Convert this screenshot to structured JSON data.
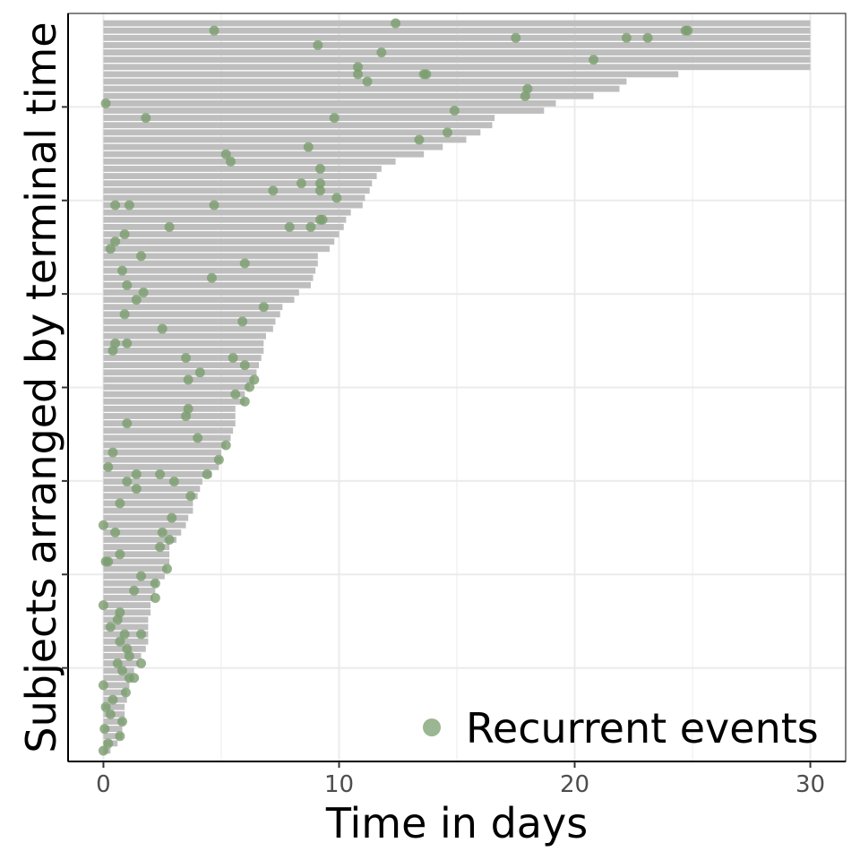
{
  "chart_data": {
    "type": "bar",
    "orientation": "horizontal",
    "xlabel": "Time in days",
    "ylabel": "Subjects arranged by terminal time",
    "xlim": [
      -1.5,
      31.5
    ],
    "ylim": [
      0,
      100
    ],
    "x_ticks": [
      0,
      10,
      20,
      30
    ],
    "y_ticks_at": [
      12.5,
      25,
      37.5,
      50,
      62.5,
      75,
      87.5
    ],
    "y_tick_labels_shown": false,
    "grid": true,
    "legend_position": "bottom-right",
    "colors": {
      "bar": "#bebebe",
      "point": "#7a9e6e",
      "grid": "#ebebeb",
      "panel_border": "#333333"
    },
    "bar_series_name": "",
    "point_series_name": "Recurrent events",
    "subjects": [
      {
        "terminal": 0.3,
        "events": [
          0.0
        ]
      },
      {
        "terminal": 0.6,
        "events": [
          0.2
        ]
      },
      {
        "terminal": 0.8,
        "events": [
          0.7
        ]
      },
      {
        "terminal": 0.8,
        "events": [
          0.05
        ]
      },
      {
        "terminal": 0.9,
        "events": [
          0.8
        ]
      },
      {
        "terminal": 0.9,
        "events": [
          0.3
        ]
      },
      {
        "terminal": 0.9,
        "events": [
          0.1
        ]
      },
      {
        "terminal": 1.0,
        "events": [
          0.4
        ]
      },
      {
        "terminal": 1.0,
        "events": [
          0.95
        ]
      },
      {
        "terminal": 1.1,
        "events": [
          0.0
        ]
      },
      {
        "terminal": 1.2,
        "events": [
          1.1,
          1.3
        ]
      },
      {
        "terminal": 1.3,
        "events": [
          0.8
        ]
      },
      {
        "terminal": 1.5,
        "events": [
          0.6,
          1.6
        ]
      },
      {
        "terminal": 1.6,
        "events": [
          1.1
        ]
      },
      {
        "terminal": 1.8,
        "events": [
          1.0
        ]
      },
      {
        "terminal": 1.9,
        "events": [
          0.7
        ]
      },
      {
        "terminal": 1.9,
        "events": [
          0.9,
          1.6
        ]
      },
      {
        "terminal": 1.9,
        "events": [
          0.3
        ]
      },
      {
        "terminal": 1.9,
        "events": [
          0.6
        ]
      },
      {
        "terminal": 2.0,
        "events": [
          0.7
        ]
      },
      {
        "terminal": 2.0,
        "events": [
          0.0
        ]
      },
      {
        "terminal": 2.1,
        "events": [
          2.2
        ]
      },
      {
        "terminal": 2.2,
        "events": [
          1.3
        ]
      },
      {
        "terminal": 2.3,
        "events": [
          2.2
        ]
      },
      {
        "terminal": 2.6,
        "events": [
          1.6
        ]
      },
      {
        "terminal": 2.7,
        "events": [
          2.7
        ]
      },
      {
        "terminal": 2.8,
        "events": [
          0.1,
          0.2
        ]
      },
      {
        "terminal": 2.8,
        "events": [
          0.7
        ]
      },
      {
        "terminal": 2.8,
        "events": [
          2.4
        ]
      },
      {
        "terminal": 3.1,
        "events": [
          2.8
        ]
      },
      {
        "terminal": 3.3,
        "events": [
          0.5,
          2.5
        ]
      },
      {
        "terminal": 3.5,
        "events": [
          0.0
        ]
      },
      {
        "terminal": 3.6,
        "events": [
          2.9
        ]
      },
      {
        "terminal": 3.8,
        "events": []
      },
      {
        "terminal": 3.8,
        "events": [
          0.7
        ]
      },
      {
        "terminal": 4.0,
        "events": [
          3.7
        ]
      },
      {
        "terminal": 4.1,
        "events": [
          1.4
        ]
      },
      {
        "terminal": 4.2,
        "events": [
          1.0,
          3.0
        ]
      },
      {
        "terminal": 4.6,
        "events": [
          1.4,
          2.4,
          4.4
        ]
      },
      {
        "terminal": 4.9,
        "events": [
          0.2
        ]
      },
      {
        "terminal": 5.0,
        "events": [
          4.9
        ]
      },
      {
        "terminal": 5.0,
        "events": [
          0.4
        ]
      },
      {
        "terminal": 5.2,
        "events": [
          5.2
        ]
      },
      {
        "terminal": 5.4,
        "events": [
          4.0
        ]
      },
      {
        "terminal": 5.5,
        "events": []
      },
      {
        "terminal": 5.6,
        "events": [
          1.0
        ]
      },
      {
        "terminal": 5.6,
        "events": [
          3.5
        ]
      },
      {
        "terminal": 5.6,
        "events": [
          3.6
        ]
      },
      {
        "terminal": 6.0,
        "events": [
          6.0
        ]
      },
      {
        "terminal": 6.0,
        "events": [
          5.6
        ]
      },
      {
        "terminal": 6.2,
        "events": [
          6.2
        ]
      },
      {
        "terminal": 6.4,
        "events": [
          6.4,
          3.6
        ]
      },
      {
        "terminal": 6.5,
        "events": [
          4.1
        ]
      },
      {
        "terminal": 6.6,
        "events": [
          6.0
        ]
      },
      {
        "terminal": 6.7,
        "events": [
          3.5,
          5.5
        ]
      },
      {
        "terminal": 6.8,
        "events": [
          0.4
        ]
      },
      {
        "terminal": 6.8,
        "events": [
          0.5,
          1.0
        ]
      },
      {
        "terminal": 6.9,
        "events": []
      },
      {
        "terminal": 7.2,
        "events": [
          2.5
        ]
      },
      {
        "terminal": 7.3,
        "events": [
          5.9
        ]
      },
      {
        "terminal": 7.5,
        "events": [
          0.9
        ]
      },
      {
        "terminal": 7.6,
        "events": [
          6.8
        ]
      },
      {
        "terminal": 8.1,
        "events": [
          1.4
        ]
      },
      {
        "terminal": 8.3,
        "events": [
          1.7
        ]
      },
      {
        "terminal": 8.8,
        "events": [
          1.0
        ]
      },
      {
        "terminal": 8.9,
        "events": [
          4.6
        ]
      },
      {
        "terminal": 9.0,
        "events": [
          0.8
        ]
      },
      {
        "terminal": 9.1,
        "events": [
          6.0
        ]
      },
      {
        "terminal": 9.1,
        "events": [
          1.6
        ]
      },
      {
        "terminal": 9.6,
        "events": [
          0.3
        ]
      },
      {
        "terminal": 9.8,
        "events": [
          0.5
        ]
      },
      {
        "terminal": 10.0,
        "events": [
          0.9
        ]
      },
      {
        "terminal": 10.2,
        "events": [
          2.8,
          7.9,
          8.8
        ]
      },
      {
        "terminal": 10.3,
        "events": [
          9.2,
          9.3
        ]
      },
      {
        "terminal": 10.5,
        "events": []
      },
      {
        "terminal": 11.0,
        "events": [
          0.5,
          1.1,
          4.7
        ]
      },
      {
        "terminal": 11.1,
        "events": [
          9.9
        ]
      },
      {
        "terminal": 11.3,
        "events": [
          7.2,
          9.2
        ]
      },
      {
        "terminal": 11.4,
        "events": [
          8.4,
          9.2
        ]
      },
      {
        "terminal": 11.6,
        "events": []
      },
      {
        "terminal": 11.8,
        "events": [
          9.2
        ]
      },
      {
        "terminal": 12.4,
        "events": [
          5.4
        ]
      },
      {
        "terminal": 13.6,
        "events": [
          5.2
        ]
      },
      {
        "terminal": 14.4,
        "events": [
          8.7
        ]
      },
      {
        "terminal": 15.4,
        "events": [
          13.4
        ]
      },
      {
        "terminal": 16.0,
        "events": [
          14.6
        ]
      },
      {
        "terminal": 16.5,
        "events": []
      },
      {
        "terminal": 16.6,
        "events": [
          9.8,
          1.8
        ]
      },
      {
        "terminal": 18.7,
        "events": [
          14.9
        ]
      },
      {
        "terminal": 19.2,
        "events": [
          0.1
        ]
      },
      {
        "terminal": 20.8,
        "events": [
          17.9
        ]
      },
      {
        "terminal": 21.9,
        "events": [
          18.0
        ]
      },
      {
        "terminal": 22.2,
        "events": [
          11.2
        ]
      },
      {
        "terminal": 24.4,
        "events": [
          10.8,
          13.6,
          13.7
        ]
      },
      {
        "terminal": 30.0,
        "events": [
          10.8
        ]
      },
      {
        "terminal": 30.0,
        "events": [
          20.8
        ]
      },
      {
        "terminal": 30.0,
        "events": [
          11.8
        ]
      },
      {
        "terminal": 30.0,
        "events": [
          9.1
        ]
      },
      {
        "terminal": 30.0,
        "events": [
          17.5,
          22.2,
          23.1
        ]
      },
      {
        "terminal": 30.0,
        "events": [
          4.7,
          24.7,
          24.8
        ]
      },
      {
        "terminal": 30.0,
        "events": [
          12.4
        ]
      }
    ]
  }
}
